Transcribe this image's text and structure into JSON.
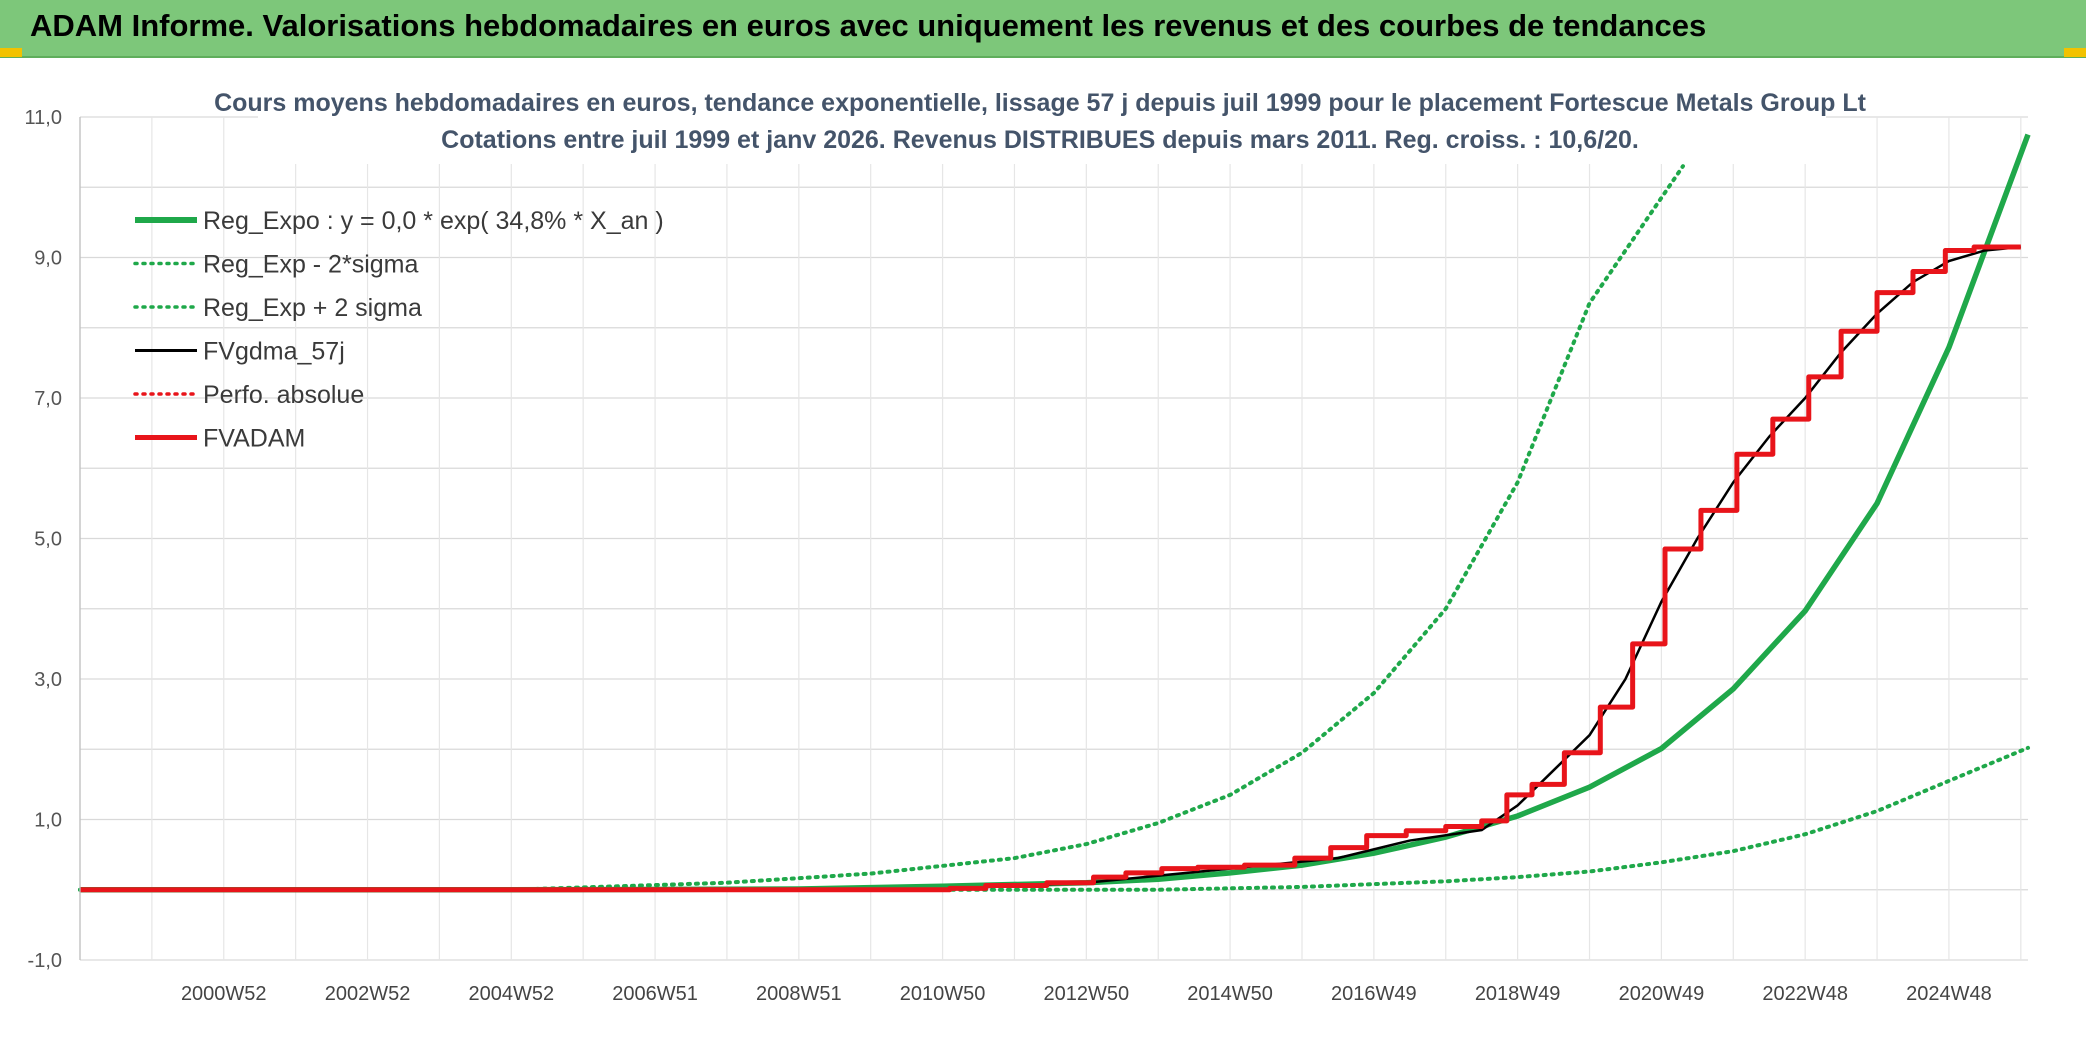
{
  "banner": {
    "text": "ADAM Informe. Valorisations hebdomadaires en euros avec uniquement les revenus et des courbes de tendances"
  },
  "colors": {
    "banner_bg": "#7dc77a",
    "green": "#1fa84a",
    "red": "#e8141a",
    "black": "#000000",
    "grid": "#d9d9d9"
  },
  "chart_data": {
    "type": "line",
    "title_lines": [
      "Cours moyens hebdomadaires en euros, tendance exponentielle, lissage 57 j depuis juil 1999 pour le placement Fortescue Metals Group Lt",
      "Cotations entre juil 1999 et janv 2026. Revenus DISTRIBUES depuis mars 2011. Reg. croiss. : 10,6/20."
    ],
    "xlim": [
      1999.0,
      2026.1
    ],
    "ylim": [
      -1,
      11
    ],
    "y_ticks": [
      -1,
      1,
      3,
      5,
      7,
      9,
      11
    ],
    "y_tick_labels": [
      "-1,0",
      "1,0",
      "3,0",
      "5,0",
      "7,0",
      "9,0",
      "11,0"
    ],
    "x_ticks": [
      2001.0,
      2003.0,
      2005.0,
      2007.0,
      2009.0,
      2011.0,
      2013.0,
      2015.0,
      2017.0,
      2019.0,
      2021.0,
      2023.0,
      2025.0
    ],
    "x_tick_labels": [
      "2000W52",
      "2002W52",
      "2004W52",
      "2006W51",
      "2008W51",
      "2010W50",
      "2012W50",
      "2014W50",
      "2016W49",
      "2018W49",
      "2020W49",
      "2022W48",
      "2024W48"
    ],
    "grid": true,
    "legend": "top-left",
    "series": [
      {
        "name": "Reg_Expo : y = 0,0 * exp( 34,8% *  X_an )",
        "style": "solid-thick",
        "color": "#1fa84a",
        "x": [
          1999.0,
          2005.0,
          2009.0,
          2011.0,
          2013.0,
          2014.0,
          2015.0,
          2016.0,
          2017.0,
          2018.0,
          2019.0,
          2020.0,
          2021.0,
          2022.0,
          2023.0,
          2024.0,
          2025.0,
          2026.1
        ],
        "y": [
          0.0,
          0.0,
          0.01,
          0.05,
          0.1,
          0.15,
          0.24,
          0.35,
          0.52,
          0.75,
          1.05,
          1.46,
          2.01,
          2.86,
          3.97,
          5.5,
          7.72,
          10.75
        ]
      },
      {
        "name": "Reg_Exp - 2*sigma",
        "style": "dotted",
        "color": "#1fa84a",
        "x": [
          1999.0,
          2012.0,
          2014.0,
          2016.0,
          2017.0,
          2018.0,
          2019.0,
          2020.0,
          2021.0,
          2022.0,
          2023.0,
          2024.0,
          2025.0,
          2026.1
        ],
        "y": [
          0.0,
          0.0,
          0.0,
          0.04,
          0.08,
          0.12,
          0.18,
          0.26,
          0.39,
          0.55,
          0.79,
          1.12,
          1.55,
          2.02
        ]
      },
      {
        "name": "Reg_Exp + 2 sigma",
        "style": "dotted",
        "color": "#1fa84a",
        "x": [
          1999.0,
          2005.0,
          2008.0,
          2010.0,
          2012.0,
          2013.0,
          2014.0,
          2015.0,
          2016.0,
          2017.0,
          2018.0,
          2019.0,
          2020.0,
          2021.3
        ],
        "y": [
          0.0,
          0.0,
          0.1,
          0.23,
          0.45,
          0.65,
          0.95,
          1.35,
          1.95,
          2.8,
          4.0,
          5.8,
          8.35,
          10.3
        ]
      },
      {
        "name": "FVgdma_57j",
        "style": "solid-thin",
        "color": "#000000",
        "x": [
          1999.0,
          2011.0,
          2013.0,
          2015.0,
          2016.5,
          2017.5,
          2018.5,
          2019.0,
          2019.5,
          2020.0,
          2020.5,
          2021.0,
          2021.5,
          2022.0,
          2022.5,
          2023.0,
          2023.5,
          2024.0,
          2024.5,
          2025.0,
          2025.5,
          2026.0
        ],
        "y": [
          0.0,
          0.01,
          0.1,
          0.3,
          0.45,
          0.7,
          0.85,
          1.2,
          1.7,
          2.2,
          3.0,
          4.1,
          5.0,
          5.8,
          6.45,
          7.0,
          7.65,
          8.2,
          8.65,
          8.95,
          9.1,
          9.15
        ]
      },
      {
        "name": "Perfo. absolue",
        "style": "dotted",
        "color": "#e8141a",
        "x": [],
        "y": []
      },
      {
        "name": "FVADAM",
        "style": "step",
        "color": "#e8141a",
        "x": [
          1999.0,
          2011.0,
          2011.2,
          2012.0,
          2012.9,
          2013.3,
          2013.8,
          2014.3,
          2014.8,
          2015.6,
          2016.2,
          2016.6,
          2017.2,
          2017.7,
          2018.3,
          2018.7,
          2019.0,
          2019.4,
          2019.9,
          2020.4,
          2020.8,
          2021.3,
          2021.8,
          2022.3,
          2022.8,
          2023.3,
          2023.7,
          2024.3,
          2024.7,
          2025.2,
          2025.5,
          2026.0
        ],
        "y": [
          0.0,
          0.0,
          0.02,
          0.06,
          0.1,
          0.18,
          0.24,
          0.3,
          0.32,
          0.35,
          0.45,
          0.6,
          0.77,
          0.84,
          0.9,
          0.98,
          1.35,
          1.5,
          1.95,
          2.6,
          3.5,
          4.85,
          5.4,
          6.2,
          6.7,
          7.3,
          7.95,
          8.5,
          8.8,
          9.1,
          9.15,
          9.15
        ]
      }
    ]
  }
}
